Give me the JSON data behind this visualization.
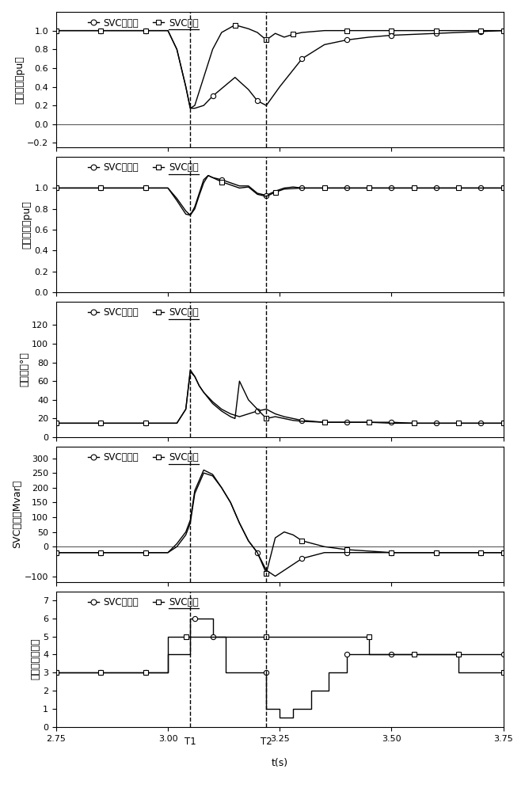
{
  "xlim": [
    2.75,
    3.75
  ],
  "xticks": [
    2.75,
    3.0,
    3.25,
    3.5,
    3.75
  ],
  "xticklabels": [
    "2.75",
    "3.00",
    "3.25",
    "3.50",
    "3.75"
  ],
  "T1": 3.05,
  "T2": 3.22,
  "xlabel": "t(s)",
  "panels": [
    {
      "ylabel": "直流功率（pu）",
      "ylim": [
        -0.25,
        1.2
      ],
      "yticks": [
        -0.2,
        0.0,
        0.2,
        0.4,
        0.6,
        0.8,
        1.0
      ]
    },
    {
      "ylabel": "换相电压（pu）",
      "ylim": [
        0.0,
        1.3
      ],
      "yticks": [
        0.0,
        0.2,
        0.4,
        0.6,
        0.8,
        1.0
      ]
    },
    {
      "ylabel": "息弧角（°）",
      "ylim": [
        0,
        145
      ],
      "yticks": [
        0,
        20,
        40,
        60,
        80,
        100,
        120
      ]
    },
    {
      "ylabel": "SVC出力（Mvar）",
      "ylim": [
        -120,
        340
      ],
      "yticks": [
        -100,
        0,
        50,
        100,
        150,
        200,
        250,
        300
      ]
    },
    {
      "ylabel": "电容器投入组数",
      "ylim": [
        0.0,
        7.5
      ],
      "yticks": [
        0.0,
        1.0,
        2.0,
        3.0,
        4.0,
        5.0,
        6.0,
        7.0
      ]
    }
  ],
  "figsize": [
    6.63,
    10.0
  ],
  "dpi": 100,
  "legend_no": "SVC无优化",
  "legend_opt": "SVC优化"
}
